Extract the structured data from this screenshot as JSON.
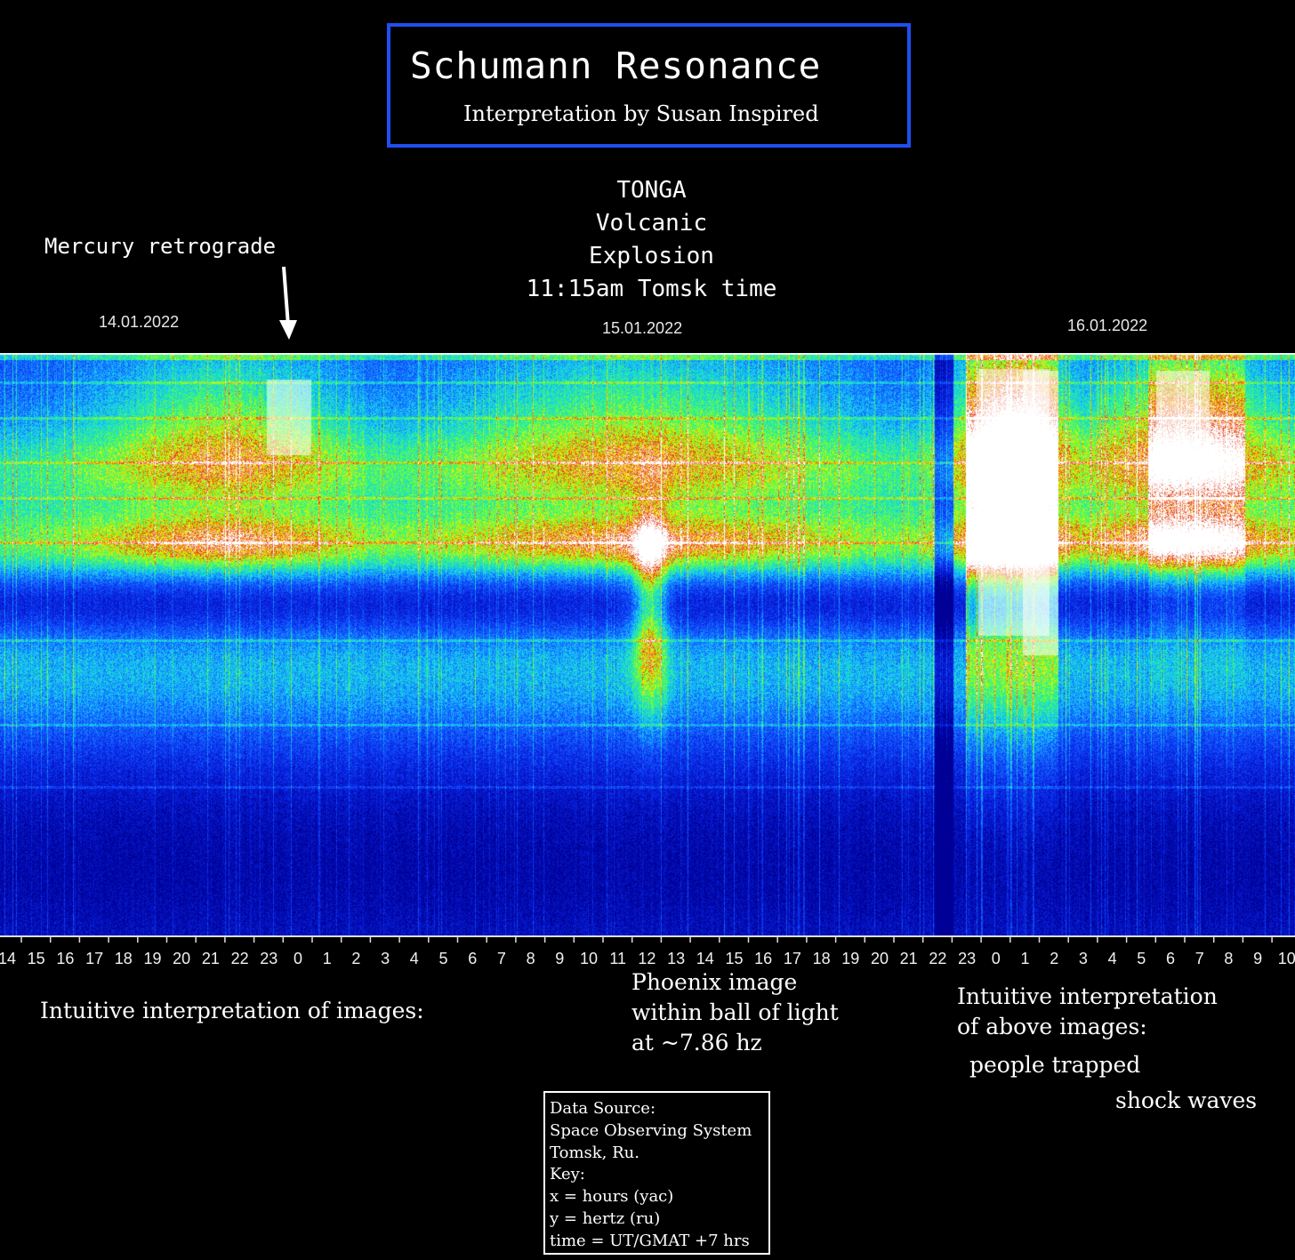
{
  "header": {
    "title": "Schumann Resonance",
    "subtitle": "Interpretation by Susan Inspired"
  },
  "annotations": {
    "tonga": [
      "TONGA",
      "Volcanic",
      "Explosion",
      "11:15am Tomsk time"
    ],
    "mercury": "Mercury retrograde"
  },
  "captions": {
    "left": "Intuitive interpretation of images:",
    "phoenix": [
      "Phoenix image",
      "within ball of light",
      "at ~7.86 hz"
    ],
    "right": [
      "Intuitive interpretation",
      "of above images:"
    ],
    "people": "people trapped",
    "shock": "shock waves"
  },
  "source": [
    "Data Source:",
    "Space Observing System",
    "Tomsk, Ru.",
    "Key:",
    "x = hours (yac)",
    "y = hertz (ru)",
    "time = UT/GMAT +7 hrs"
  ],
  "colors": {
    "title_border": "#1e4ff0",
    "background": "#000000"
  },
  "chart_data": {
    "type": "heatmap",
    "title": "Schumann Resonance",
    "dates": [
      "14.01.2022",
      "15.01.2022",
      "16.01.2022"
    ],
    "x_tick_labels": [
      "14",
      "15",
      "16",
      "17",
      "18",
      "19",
      "20",
      "21",
      "22",
      "23",
      "0",
      "1",
      "2",
      "3",
      "4",
      "5",
      "6",
      "7",
      "8",
      "9",
      "10",
      "11",
      "12",
      "13",
      "14",
      "15",
      "16",
      "17",
      "18",
      "19",
      "20",
      "21",
      "22",
      "23",
      "0",
      "1",
      "2",
      "3",
      "4",
      "5",
      "6",
      "7",
      "8",
      "9",
      "10"
    ],
    "x_unit": "hours",
    "y_unit": "hertz",
    "colorscale": [
      "#0000b4",
      "#1e5aff",
      "#14c8ff",
      "#3cff64",
      "#ffee00",
      "#e03010",
      "#ffffff"
    ],
    "events": [
      {
        "label": "Mercury retrograde",
        "x": "0 (15.01.2022)"
      },
      {
        "label": "TONGA Volcanic Explosion",
        "x": "12 (15.01.2022)"
      }
    ]
  }
}
